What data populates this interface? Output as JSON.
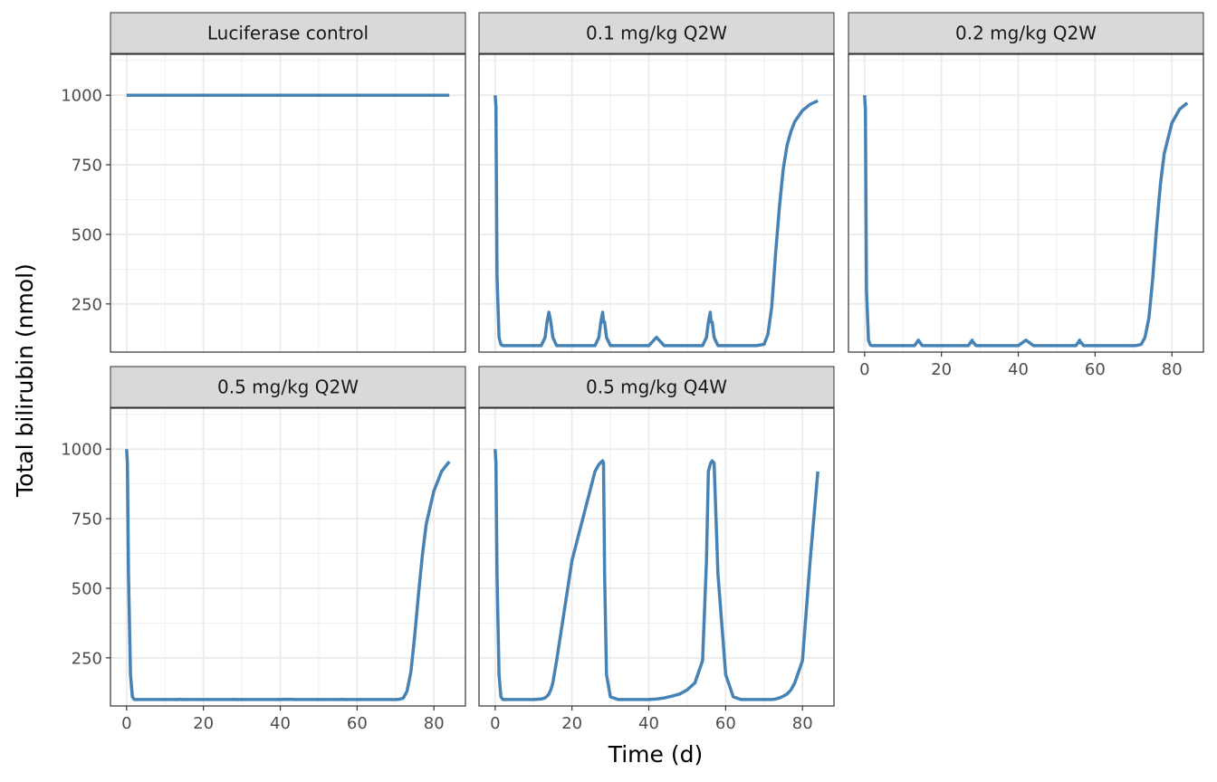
{
  "chart_data": {
    "type": "line",
    "xlabel": "Time (d)",
    "ylabel": "Total bilirubin (nmol)",
    "xlim": [
      -4.2,
      88.2
    ],
    "ylim": [
      77,
      1147
    ],
    "x_ticks": [
      0,
      20,
      40,
      60,
      80
    ],
    "x_tick_labels": [
      "0",
      "20",
      "40",
      "60",
      "80"
    ],
    "y_ticks": [
      250,
      500,
      750,
      1000
    ],
    "y_tick_labels": [
      "250",
      "500",
      "750",
      "1000"
    ],
    "grid": true,
    "line_color": "#4682B4",
    "strip_fill": "#D9D9D9",
    "x": [
      0,
      0.2,
      0.5,
      1,
      1.5,
      2,
      3,
      5,
      10,
      12,
      13,
      13.5,
      14,
      14.5,
      15,
      16,
      20,
      26,
      27,
      27.5,
      28,
      28.2,
      28.5,
      29,
      30,
      32,
      34,
      36,
      40,
      42,
      44,
      46,
      48,
      50,
      52,
      54,
      55,
      55.5,
      56,
      56.2,
      56.5,
      57,
      58,
      60,
      62,
      64,
      66,
      68,
      70,
      71,
      72,
      73,
      74,
      75,
      76,
      77,
      78,
      80,
      82,
      84
    ],
    "series": [
      {
        "name": "Luciferase control",
        "values": [
          1000,
          1000,
          1000,
          1000,
          1000,
          1000,
          1000,
          1000,
          1000,
          1000,
          1000,
          1000,
          1000,
          1000,
          1000,
          1000,
          1000,
          1000,
          1000,
          1000,
          1000,
          1000,
          1000,
          1000,
          1000,
          1000,
          1000,
          1000,
          1000,
          1000,
          1000,
          1000,
          1000,
          1000,
          1000,
          1000,
          1000,
          1000,
          1000,
          1000,
          1000,
          1000,
          1000,
          1000,
          1000,
          1000,
          1000,
          1000,
          1000,
          1000,
          1000,
          1000,
          1000,
          1000,
          1000,
          1000,
          1000,
          1000,
          1000,
          1000
        ]
      },
      {
        "name": "0.1 mg/kg Q2W",
        "values": [
          1000,
          960,
          350,
          130,
          105,
          100,
          100,
          100,
          100,
          100,
          130,
          185,
          220,
          185,
          130,
          100,
          100,
          100,
          130,
          185,
          220,
          185,
          185,
          130,
          100,
          100,
          100,
          100,
          100,
          130,
          100,
          100,
          100,
          100,
          100,
          100,
          130,
          185,
          220,
          185,
          185,
          130,
          100,
          100,
          100,
          100,
          100,
          100,
          105,
          140,
          240,
          430,
          600,
          735,
          820,
          870,
          905,
          945,
          967,
          980
        ]
      },
      {
        "name": "0.2 mg/kg Q2W",
        "values": [
          1000,
          950,
          300,
          120,
          102,
          100,
          100,
          100,
          100,
          100,
          100,
          110,
          120,
          110,
          100,
          100,
          100,
          100,
          100,
          110,
          120,
          110,
          110,
          100,
          100,
          100,
          100,
          100,
          100,
          120,
          100,
          100,
          100,
          100,
          100,
          100,
          100,
          110,
          120,
          110,
          110,
          100,
          100,
          100,
          100,
          100,
          100,
          100,
          100,
          101,
          105,
          130,
          200,
          340,
          520,
          680,
          790,
          900,
          950,
          972
        ]
      },
      {
        "name": "0.5 mg/kg Q2W",
        "values": [
          1000,
          950,
          550,
          190,
          110,
          100,
          100,
          100,
          100,
          100,
          100,
          100,
          101,
          100,
          100,
          100,
          100,
          100,
          100,
          100,
          101,
          100,
          100,
          100,
          100,
          100,
          100,
          100,
          100,
          101,
          100,
          100,
          100,
          100,
          100,
          100,
          100,
          100,
          101,
          100,
          100,
          100,
          100,
          100,
          100,
          100,
          100,
          100,
          100,
          101,
          105,
          130,
          200,
          330,
          480,
          620,
          730,
          850,
          920,
          955
        ]
      },
      {
        "name": "0.5 mg/kg Q4W",
        "values": [
          1000,
          950,
          550,
          190,
          110,
          100,
          100,
          100,
          100,
          102,
          106,
          112,
          120,
          135,
          160,
          240,
          600,
          920,
          945,
          952,
          958,
          950,
          550,
          190,
          110,
          100,
          100,
          100,
          100,
          102,
          106,
          112,
          120,
          135,
          160,
          240,
          600,
          920,
          945,
          952,
          958,
          950,
          550,
          190,
          110,
          100,
          100,
          100,
          100,
          100,
          100,
          102,
          106,
          112,
          120,
          135,
          160,
          240,
          600,
          920
        ]
      }
    ]
  }
}
